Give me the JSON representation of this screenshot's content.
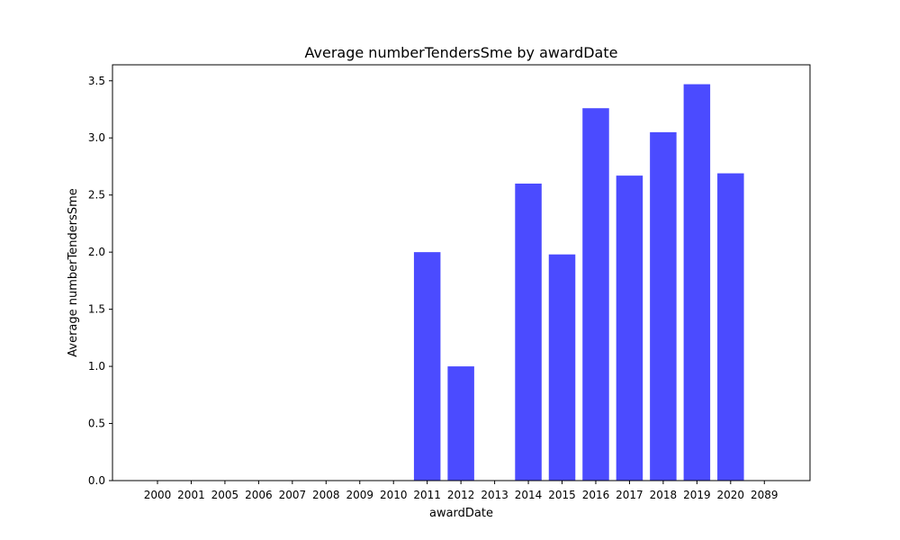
{
  "chart_data": {
    "type": "bar",
    "title": "Average numberTendersSme by awardDate",
    "xlabel": "awardDate",
    "ylabel": "Average numberTendersSme",
    "categories": [
      "2000",
      "2001",
      "2005",
      "2006",
      "2007",
      "2008",
      "2009",
      "2010",
      "2011",
      "2012",
      "2013",
      "2014",
      "2015",
      "2016",
      "2017",
      "2018",
      "2019",
      "2020",
      "2089"
    ],
    "values": [
      0,
      0,
      0,
      0,
      0,
      0,
      0,
      0,
      2.0,
      1.0,
      0,
      2.6,
      1.98,
      3.26,
      2.67,
      3.05,
      3.47,
      2.69,
      0
    ],
    "yticks": [
      "0.0",
      "0.5",
      "1.0",
      "1.5",
      "2.0",
      "2.5",
      "3.0",
      "3.5"
    ],
    "ylim": [
      0,
      3.64
    ],
    "bar_color": "#4b4bff",
    "grid": false,
    "legend": "none"
  }
}
